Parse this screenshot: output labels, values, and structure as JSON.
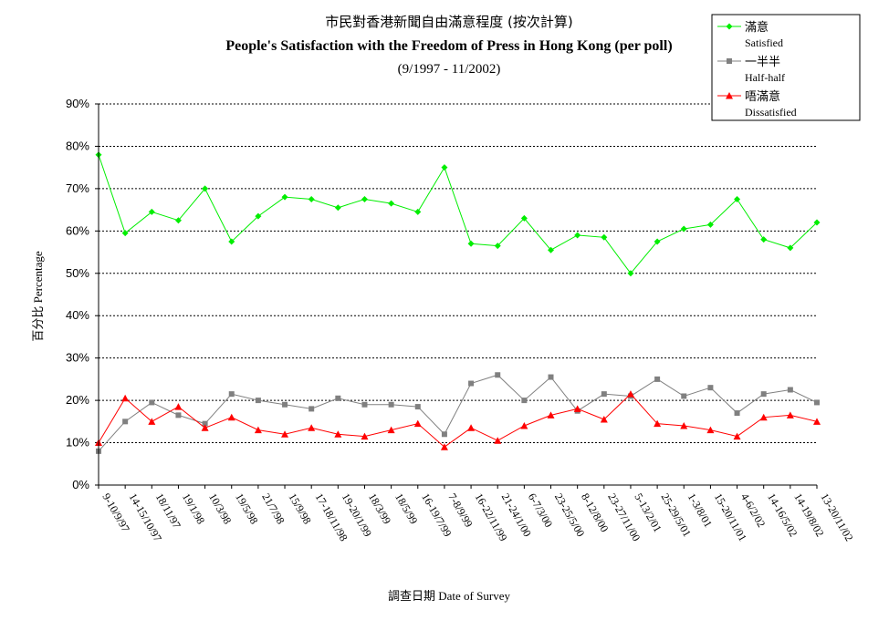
{
  "chart_data": {
    "type": "line",
    "title": "市民對香港新聞自由滿意程度 (按次計算)",
    "subtitle": "People's Satisfaction with the Freedom of Press in Hong Kong (per poll)",
    "period": "(9/1997 - 11/2002)",
    "xlabel": "調查日期 Date of Survey",
    "ylabel": "百分比 Percentage",
    "ylim": [
      0,
      90
    ],
    "yticks": [
      "0%",
      "10%",
      "20%",
      "30%",
      "40%",
      "50%",
      "60%",
      "70%",
      "80%",
      "90%"
    ],
    "grid": "horizontal dotted",
    "legend_position": "top-right",
    "categories": [
      "9-10/9/97",
      "14-15/10/97",
      "18/11/97",
      "19/1/98",
      "10/3/98",
      "19/5/98",
      "21/7/98",
      "15/9/98",
      "17-18/11/98",
      "19-20/1/99",
      "18/3/99",
      "18/5/99",
      "16-19/7/99",
      "7-8/9/99",
      "16-22/11/99",
      "21-24/1/00",
      "6-7/3/00",
      "23-25/5/00",
      "8-12/8/00",
      "23-27/11/00",
      "5-13/2/01",
      "25-29/5/01",
      "1-3/8/01",
      "15-20/11/01",
      "4-6/2/02",
      "14-16/5/02",
      "14-19/8/02",
      "13-20/11/02"
    ],
    "series": [
      {
        "name": "滿意",
        "name_en": "Satisfied",
        "color": "#00ee00",
        "marker": "diamond",
        "values": [
          78,
          59.5,
          64.5,
          62.5,
          70,
          57.5,
          63.5,
          68,
          67.5,
          65.5,
          67.5,
          66.5,
          64.5,
          75,
          57,
          56.5,
          63,
          55.5,
          59,
          58.5,
          50,
          57.5,
          60.5,
          61.5,
          67.5,
          58,
          56,
          62
        ]
      },
      {
        "name": "一半半",
        "name_en": "Half-half",
        "color": "#808080",
        "marker": "square",
        "values": [
          8,
          15,
          19.5,
          16.5,
          14.5,
          21.5,
          20,
          19,
          18,
          20.5,
          19,
          19,
          18.5,
          12,
          24,
          26,
          20,
          25.5,
          17.5,
          21.5,
          21,
          25,
          21,
          23,
          17,
          21.5,
          22.5,
          19.5
        ]
      },
      {
        "name": "唔滿意",
        "name_en": "Dissatisfied",
        "color": "#ff0000",
        "marker": "triangle",
        "values": [
          10,
          20.5,
          15,
          18.5,
          13.5,
          16,
          13,
          12,
          13.5,
          12,
          11.5,
          13,
          14.5,
          9,
          13.5,
          10.5,
          14,
          16.5,
          18,
          15.5,
          21.5,
          14.5,
          14,
          13,
          11.5,
          16,
          16.5,
          15
        ]
      }
    ]
  }
}
